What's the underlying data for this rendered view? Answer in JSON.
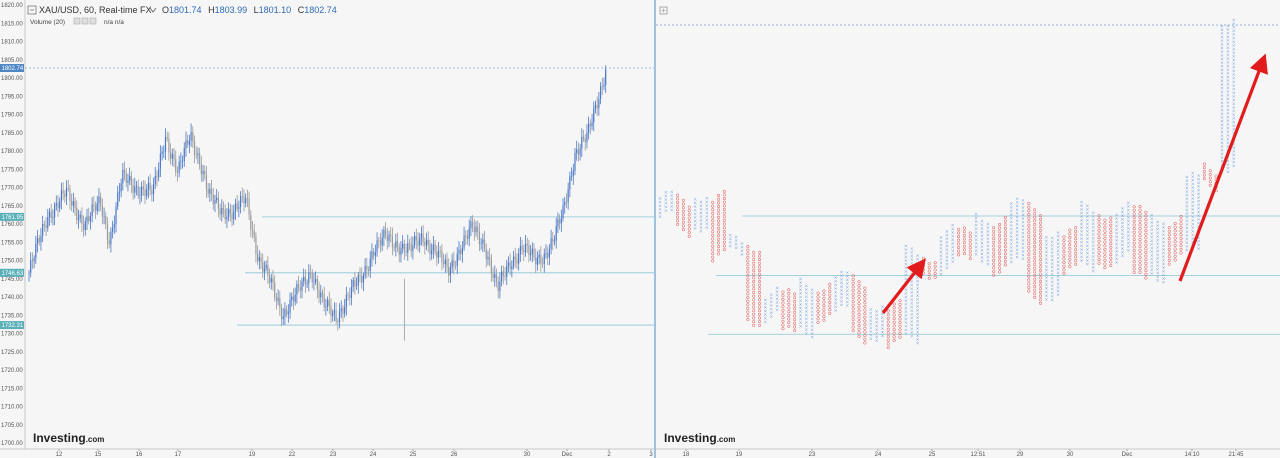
{
  "header": {
    "symbol": "XAU/USD, 60, Real-time FX",
    "ohlc": {
      "o_label": "O",
      "o": "1801.74",
      "h_label": "H",
      "h": "1803.99",
      "l_label": "L",
      "l": "1801.10",
      "c_label": "C",
      "c": "1802.74"
    },
    "volume_label": "Volume (20)",
    "volume_values": "n/a  n/a"
  },
  "branding": {
    "logo": "Investing",
    "logo_suffix": ".com"
  },
  "price_tags": [
    {
      "label": "1802.74",
      "value": 1802.74,
      "color": "#4f87c5"
    },
    {
      "label": "1761.95",
      "value": 1761.95,
      "color": "#5ab0b8"
    },
    {
      "label": "1746.63",
      "value": 1746.63,
      "color": "#5ab0b8"
    },
    {
      "label": "1732.31",
      "value": 1732.31,
      "color": "#5ab0b8"
    }
  ],
  "colors": {
    "up": "#4a78c8",
    "down": "#9a9a9a",
    "o_mark": "#e04848",
    "x_mark": "#6a9ae0",
    "hline": "#8ac6d6",
    "arrow": "#e21c1c",
    "accent": "#2e6bb4"
  },
  "chart_data": [
    {
      "type": "candlestick",
      "ylim": [
        1700,
        1820
      ],
      "y_ticks": [
        "1700.00",
        "1705.00",
        "1710.00",
        "1715.00",
        "1720.00",
        "1725.00",
        "1730.00",
        "1735.00",
        "1740.00",
        "1745.00",
        "1750.00",
        "1755.00",
        "1760.00",
        "1765.00",
        "1770.00",
        "1775.00",
        "1780.00",
        "1785.00",
        "1790.00",
        "1795.00",
        "1800.00",
        "1805.00",
        "1810.00",
        "1815.00",
        "1820.00"
      ],
      "x_ticks": [
        "12",
        "15",
        "16",
        "17",
        "19",
        "22",
        "23",
        "24",
        "25",
        "26",
        "30",
        "Dec",
        "2",
        "3"
      ],
      "horizontal_levels": [
        1802.74,
        1761.95,
        1746.63,
        1732.31
      ],
      "series": [
        {
          "x": 0,
          "y": 1746.6
        },
        {
          "x": 6,
          "y": 1762.5
        },
        {
          "x": 12,
          "y": 1768.3
        },
        {
          "x": 18,
          "y": 1760.1
        },
        {
          "x": 23,
          "y": 1765.8
        },
        {
          "x": 26,
          "y": 1755.7
        },
        {
          "x": 30,
          "y": 1772.5
        },
        {
          "x": 35,
          "y": 1770.1
        },
        {
          "x": 40,
          "y": 1768.3
        },
        {
          "x": 44,
          "y": 1784.7
        },
        {
          "x": 48,
          "y": 1773.2
        },
        {
          "x": 52,
          "y": 1785.1
        },
        {
          "x": 55,
          "y": 1777.4
        },
        {
          "x": 58,
          "y": 1767.2
        },
        {
          "x": 62,
          "y": 1764.4
        },
        {
          "x": 66,
          "y": 1762.6
        },
        {
          "x": 70,
          "y": 1767.4
        },
        {
          "x": 74,
          "y": 1750.3
        },
        {
          "x": 78,
          "y": 1743.5
        },
        {
          "x": 82,
          "y": 1735.5
        },
        {
          "x": 86,
          "y": 1740.2
        },
        {
          "x": 91,
          "y": 1747.6
        },
        {
          "x": 95,
          "y": 1737.5
        },
        {
          "x": 99,
          "y": 1734.7
        },
        {
          "x": 103,
          "y": 1740.4
        },
        {
          "x": 107,
          "y": 1744.8
        },
        {
          "x": 111,
          "y": 1753.1
        },
        {
          "x": 115,
          "y": 1756.1
        },
        {
          "x": 119,
          "y": 1754.5
        },
        {
          "x": 123,
          "y": 1752.7
        },
        {
          "x": 127,
          "y": 1756.8
        },
        {
          "x": 131,
          "y": 1752.4
        },
        {
          "x": 135,
          "y": 1746.9
        },
        {
          "x": 139,
          "y": 1753.6
        },
        {
          "x": 143,
          "y": 1758.7
        },
        {
          "x": 147,
          "y": 1754.4
        },
        {
          "x": 151,
          "y": 1741.6
        },
        {
          "x": 155,
          "y": 1749.6
        },
        {
          "x": 159,
          "y": 1753.4
        },
        {
          "x": 163,
          "y": 1750.2
        },
        {
          "x": 166,
          "y": 1751.6
        },
        {
          "x": 169,
          "y": 1755.1
        },
        {
          "x": 172,
          "y": 1762.6
        },
        {
          "x": 176,
          "y": 1779.5
        },
        {
          "x": 180,
          "y": 1783.6
        },
        {
          "x": 183,
          "y": 1793.5
        },
        {
          "x": 186,
          "y": 1802.7
        }
      ],
      "y_label": "",
      "x_label": ""
    },
    {
      "type": "point_and_figure",
      "x_ticks": [
        "18",
        "19",
        "23",
        "24",
        "25",
        "12:51",
        "29",
        "30",
        "Dec",
        "14:10",
        "21:45"
      ],
      "horizontal_levels": [
        1814.5,
        1762.2,
        1745.9,
        1729.8
      ],
      "columns": [
        {
          "kind": "X",
          "from": 1762,
          "to": 1767
        },
        {
          "kind": "O",
          "from": 1766,
          "to": 1758
        },
        {
          "kind": "X",
          "from": 1760,
          "to": 1768
        },
        {
          "kind": "O",
          "from": 1767,
          "to": 1751
        },
        {
          "kind": "X",
          "from": 1752,
          "to": 1755
        },
        {
          "kind": "O",
          "from": 1754,
          "to": 1734
        },
        {
          "kind": "X",
          "from": 1735,
          "to": 1741
        },
        {
          "kind": "O",
          "from": 1740,
          "to": 1730
        },
        {
          "kind": "X",
          "from": 1731,
          "to": 1744
        },
        {
          "kind": "O",
          "from": 1743,
          "to": 1735
        },
        {
          "kind": "X",
          "from": 1736,
          "to": 1745
        },
        {
          "kind": "O",
          "from": 1744,
          "to": 1729
        },
        {
          "kind": "X",
          "from": 1730,
          "to": 1738
        },
        {
          "kind": "O",
          "from": 1737,
          "to": 1727
        },
        {
          "kind": "X",
          "from": 1728,
          "to": 1752
        },
        {
          "kind": "O",
          "from": 1751,
          "to": 1747
        },
        {
          "kind": "X",
          "from": 1748,
          "to": 1758
        },
        {
          "kind": "O",
          "from": 1757,
          "to": 1750
        },
        {
          "kind": "X",
          "from": 1751,
          "to": 1762
        },
        {
          "kind": "O",
          "from": 1761,
          "to": 1748
        },
        {
          "kind": "X",
          "from": 1749,
          "to": 1765
        },
        {
          "kind": "O",
          "from": 1764,
          "to": 1740
        },
        {
          "kind": "X",
          "from": 1741,
          "to": 1758
        },
        {
          "kind": "O",
          "from": 1757,
          "to": 1747
        },
        {
          "kind": "X",
          "from": 1748,
          "to": 1764
        },
        {
          "kind": "O",
          "from": 1763,
          "to": 1750
        },
        {
          "kind": "X",
          "from": 1751,
          "to": 1764
        },
        {
          "kind": "O",
          "from": 1763,
          "to": 1745
        },
        {
          "kind": "X",
          "from": 1746,
          "to": 1762
        },
        {
          "kind": "O",
          "from": 1761,
          "to": 1751
        },
        {
          "kind": "X",
          "from": 1752,
          "to": 1772
        },
        {
          "kind": "O",
          "from": 1771,
          "to": 1775
        },
        {
          "kind": "X",
          "from": 1776,
          "to": 1816
        }
      ],
      "y_label": "",
      "x_label": ""
    }
  ]
}
